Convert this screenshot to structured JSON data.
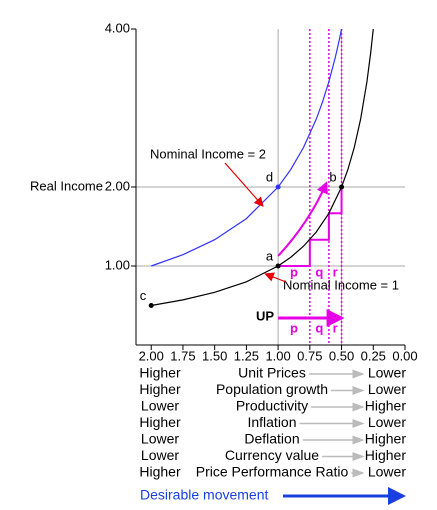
{
  "chart_data": {
    "type": "line",
    "y_label": "Real Income",
    "xlim": [
      2.12,
      0
    ],
    "ylim": [
      0,
      4
    ],
    "xticks": [
      {
        "value": 2,
        "label": "2.00"
      },
      1.75,
      {
        "value": 1.5,
        "label": "1.50"
      },
      1.25,
      {
        "value": 1,
        "label": "1.00"
      },
      0.75,
      {
        "value": 0.5,
        "label": "0.50"
      },
      0.25,
      {
        "value": 0,
        "label": "0.00"
      }
    ],
    "yticks": [
      {
        "value": 1,
        "label": "1.00"
      },
      {
        "value": 2,
        "label": "2.00"
      },
      {
        "value": 4,
        "label": "4.00"
      }
    ],
    "grid_x": [
      1,
      0.5
    ],
    "grid_y": [
      1,
      2
    ],
    "series": [
      {
        "name": "Nominal Income = 1",
        "color": "#000000",
        "x": [
          2,
          1.75,
          1.5,
          1.25,
          1,
          0.9,
          0.8,
          0.7,
          0.6,
          0.5,
          0.45,
          0.4,
          0.35,
          0.3,
          0.27,
          0.25
        ],
        "values": [
          0.5,
          0.571,
          0.667,
          0.8,
          1,
          1.111,
          1.25,
          1.429,
          1.667,
          2,
          2.222,
          2.5,
          2.857,
          3.333,
          3.704,
          4
        ]
      },
      {
        "name": "Nominal Income = 2",
        "color": "#3333ff",
        "x": [
          2,
          1.75,
          1.5,
          1.25,
          1,
          0.9,
          0.8,
          0.7,
          0.65,
          0.6,
          0.55,
          0.52,
          0.5
        ],
        "values": [
          1,
          1.143,
          1.333,
          1.6,
          2,
          2.222,
          2.5,
          2.857,
          3.077,
          3.333,
          3.636,
          3.846,
          4
        ]
      }
    ],
    "points": [
      {
        "label": "c",
        "x": 2,
        "y": 0.5,
        "color": "#000000"
      },
      {
        "label": "a",
        "x": 1,
        "y": 1,
        "color": "#000000"
      },
      {
        "label": "d",
        "x": 1,
        "y": 2,
        "color": "#3333ff"
      },
      {
        "label": "b",
        "x": 0.5,
        "y": 2,
        "color": "#000000"
      }
    ],
    "steps": {
      "color": "#e600e6",
      "x": [
        1,
        0.75,
        0.6,
        0.5
      ],
      "y": [
        1,
        1.333,
        1.667,
        2
      ],
      "labels": [
        "p",
        "q",
        "r"
      ]
    },
    "up_label": "UP",
    "rows": [
      {
        "left": "Higher",
        "label": "Unit Prices",
        "right": "Lower"
      },
      {
        "left": "Higher",
        "label": "Population growth",
        "right": "Lower"
      },
      {
        "left": "Lower",
        "label": "Productivity",
        "right": "Higher"
      },
      {
        "left": "Higher",
        "label": "Inflation",
        "right": "Lower"
      },
      {
        "left": "Lower",
        "label": "Deflation",
        "right": "Higher"
      },
      {
        "left": "Lower",
        "label": "Currency value",
        "right": "Higher"
      },
      {
        "left": "Higher",
        "label": "Price Performance Ratio",
        "right": "Lower"
      }
    ],
    "footer": "Desirable movement"
  }
}
